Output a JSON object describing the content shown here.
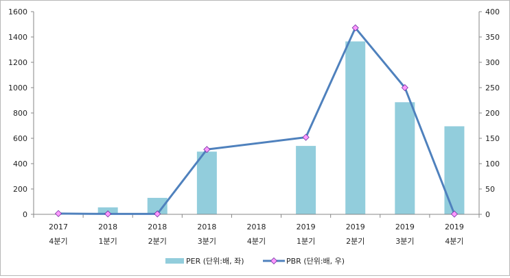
{
  "chart_data": {
    "type": "bar",
    "categories": [
      {
        "year": "2017",
        "quarter": "4분기"
      },
      {
        "year": "2018",
        "quarter": "1분기"
      },
      {
        "year": "2018",
        "quarter": "2분기"
      },
      {
        "year": "2018",
        "quarter": "3분기"
      },
      {
        "year": "2018",
        "quarter": "4분기"
      },
      {
        "year": "2019",
        "quarter": "1분기"
      },
      {
        "year": "2019",
        "quarter": "2분기"
      },
      {
        "year": "2019",
        "quarter": "3분기"
      },
      {
        "year": "2019",
        "quarter": "4분기"
      }
    ],
    "series": [
      {
        "name": "PER (단위:배, 좌)",
        "type": "bar",
        "axis": "left",
        "color": "#92cddc",
        "values": [
          0,
          55,
          130,
          495,
          0,
          540,
          1365,
          885,
          695
        ]
      },
      {
        "name": "PBR (단위:배, 우)",
        "type": "line",
        "axis": "right",
        "color": "#4f81bd",
        "marker_color": "#ff99ff",
        "values": [
          1.5,
          0.8,
          0.8,
          128,
          null,
          152,
          368,
          250,
          0.5
        ]
      }
    ],
    "left_axis": {
      "min": 0,
      "max": 1600,
      "ticks": [
        "0",
        "200",
        "400",
        "600",
        "800",
        "1000",
        "1200",
        "1400",
        "1600"
      ]
    },
    "right_axis": {
      "min": 0,
      "max": 400,
      "ticks": [
        "0",
        "50",
        "100",
        "150",
        "200",
        "250",
        "300",
        "350",
        "400"
      ]
    },
    "grid": false,
    "legend_position": "bottom"
  }
}
